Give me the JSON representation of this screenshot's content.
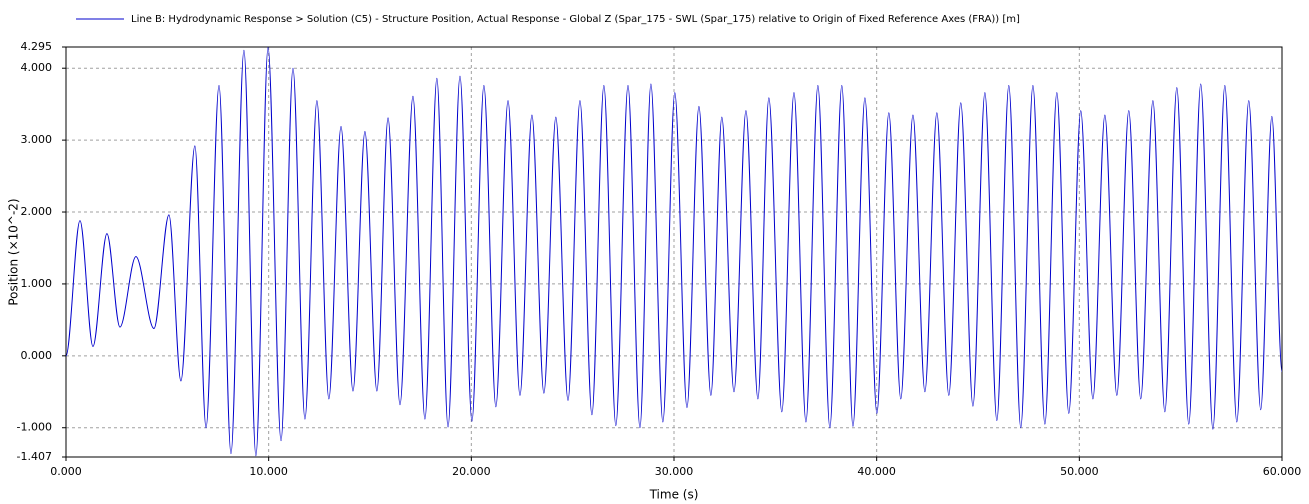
{
  "chart_data": {
    "type": "line",
    "xlabel": "Time (s)",
    "ylabel": "Position (×10^-2)",
    "x": [
      0,
      0.69,
      1.33,
      2.02,
      2.66,
      3.45,
      4.34,
      5.08,
      5.67,
      6.36,
      6.91,
      7.55,
      8.14,
      8.78,
      9.37,
      9.97,
      10.61,
      11.2,
      11.79,
      12.38,
      12.97,
      13.57,
      14.16,
      14.75,
      15.34,
      15.89,
      16.48,
      17.12,
      17.71,
      18.3,
      18.85,
      19.44,
      20.03,
      20.62,
      21.21,
      21.81,
      22.4,
      22.99,
      23.58,
      24.17,
      24.77,
      25.36,
      25.95,
      26.54,
      27.13,
      27.73,
      28.32,
      28.86,
      29.45,
      30.04,
      30.64,
      31.23,
      31.82,
      32.36,
      32.96,
      33.55,
      34.14,
      34.68,
      35.32,
      35.92,
      36.51,
      37.1,
      37.69,
      38.28,
      38.83,
      39.42,
      40.01,
      40.6,
      41.19,
      41.79,
      42.38,
      42.97,
      43.56,
      44.15,
      44.75,
      45.34,
      45.93,
      46.52,
      47.11,
      47.71,
      48.3,
      48.89,
      49.48,
      50.07,
      50.67,
      51.26,
      51.85,
      52.44,
      53.03,
      53.63,
      54.22,
      54.81,
      55.4,
      55.99,
      56.59,
      57.18,
      57.77,
      58.36,
      58.95,
      59.5,
      60
    ],
    "series": [
      {
        "name": "Line B: Hydrodynamic Response > Solution (C5) - Structure Position, Actual Response - Global Z (Spar_175 - SWL (Spar_175) relative to Origin of Fixed Reference Axes (FRA)) [m]",
        "color": "#0000cc",
        "values": [
          0,
          1.88,
          0.13,
          1.7,
          0.4,
          1.38,
          0.38,
          1.96,
          -0.35,
          2.92,
          -1.0,
          3.76,
          -1.36,
          4.25,
          -1.39,
          4.29,
          -1.18,
          4.0,
          -0.88,
          3.55,
          -0.6,
          3.19,
          -0.49,
          3.12,
          -0.49,
          3.31,
          -0.68,
          3.61,
          -0.88,
          3.86,
          -0.99,
          3.89,
          -0.91,
          3.76,
          -0.71,
          3.55,
          -0.55,
          3.35,
          -0.52,
          3.32,
          -0.62,
          3.55,
          -0.82,
          3.76,
          -0.97,
          3.76,
          -1.0,
          3.78,
          -0.92,
          3.66,
          -0.72,
          3.47,
          -0.55,
          3.32,
          -0.5,
          3.41,
          -0.6,
          3.59,
          -0.78,
          3.66,
          -0.92,
          3.76,
          -1.0,
          3.76,
          -0.98,
          3.59,
          -0.8,
          3.38,
          -0.6,
          3.35,
          -0.5,
          3.38,
          -0.55,
          3.52,
          -0.7,
          3.66,
          -0.9,
          3.76,
          -1.0,
          3.76,
          -0.95,
          3.66,
          -0.8,
          3.41,
          -0.6,
          3.35,
          -0.55,
          3.41,
          -0.6,
          3.55,
          -0.78,
          3.73,
          -0.95,
          3.78,
          -1.02,
          3.76,
          -0.92,
          3.55,
          -0.75,
          3.33,
          -0.22
        ]
      }
    ],
    "xlim": [
      0,
      60
    ],
    "xticks": [
      {
        "value": 0,
        "label": "0.000"
      },
      {
        "value": 10,
        "label": "10.000"
      },
      {
        "value": 20,
        "label": "20.000"
      },
      {
        "value": 30,
        "label": "30.000"
      },
      {
        "value": 40,
        "label": "40.000"
      },
      {
        "value": 50,
        "label": "50.000"
      },
      {
        "value": 60,
        "label": "60.000"
      }
    ],
    "ylim": [
      -1.407,
      4.295
    ],
    "yticks": [
      {
        "value": -1.407,
        "label": "-1.407"
      },
      {
        "value": -1,
        "label": "-1.000"
      },
      {
        "value": 0,
        "label": "0.000"
      },
      {
        "value": 1,
        "label": "1.000"
      },
      {
        "value": 2,
        "label": "2.000"
      },
      {
        "value": 3,
        "label": "3.000"
      },
      {
        "value": 4,
        "label": "4.000"
      },
      {
        "value": 4.295,
        "label": "4.295"
      }
    ],
    "grid": true
  }
}
